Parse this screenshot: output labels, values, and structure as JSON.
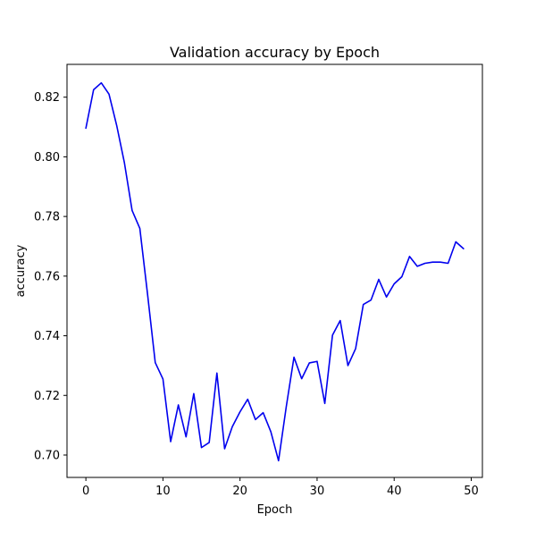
{
  "chart_data": {
    "type": "line",
    "title": "Validation accuracy by Epoch",
    "xlabel": "Epoch",
    "ylabel": "accuracy",
    "xlim": [
      -2.45,
      51.45
    ],
    "ylim": [
      0.6925,
      0.831
    ],
    "x_ticks": [
      {
        "value": 0,
        "label": "0"
      },
      {
        "value": 10,
        "label": "10"
      },
      {
        "value": 20,
        "label": "20"
      },
      {
        "value": 30,
        "label": "30"
      },
      {
        "value": 40,
        "label": "40"
      },
      {
        "value": 50,
        "label": "50"
      }
    ],
    "y_ticks": [
      {
        "value": 0.7,
        "label": "0.70"
      },
      {
        "value": 0.72,
        "label": "0.72"
      },
      {
        "value": 0.74,
        "label": "0.74"
      },
      {
        "value": 0.76,
        "label": "0.76"
      },
      {
        "value": 0.78,
        "label": "0.78"
      },
      {
        "value": 0.8,
        "label": "0.80"
      },
      {
        "value": 0.82,
        "label": "0.82"
      }
    ],
    "grid": false,
    "legend": "none",
    "series": [
      {
        "color": "#0000ee",
        "x": [
          0,
          1,
          2,
          3,
          4,
          5,
          6,
          7,
          8,
          9,
          10,
          11,
          12,
          13,
          14,
          15,
          16,
          17,
          18,
          19,
          20,
          21,
          22,
          23,
          24,
          25,
          26,
          27,
          28,
          29,
          30,
          31,
          32,
          33,
          34,
          35,
          36,
          37,
          38,
          39,
          40,
          41,
          42,
          43,
          44,
          45,
          46,
          47,
          48,
          49
        ],
        "y": [
          0.8096,
          0.8225,
          0.8248,
          0.821,
          0.8105,
          0.798,
          0.782,
          0.776,
          0.754,
          0.731,
          0.7255,
          0.7045,
          0.7168,
          0.7061,
          0.7206,
          0.7025,
          0.7042,
          0.7275,
          0.7021,
          0.7095,
          0.7145,
          0.7187,
          0.7119,
          0.7142,
          0.7078,
          0.6981,
          0.7162,
          0.7328,
          0.7256,
          0.7309,
          0.7314,
          0.7173,
          0.7402,
          0.7451,
          0.73,
          0.7357,
          0.7505,
          0.752,
          0.7589,
          0.753,
          0.7574,
          0.7598,
          0.7666,
          0.7633,
          0.7643,
          0.7647,
          0.7647,
          0.7643,
          0.7715,
          0.7692
        ]
      }
    ]
  }
}
